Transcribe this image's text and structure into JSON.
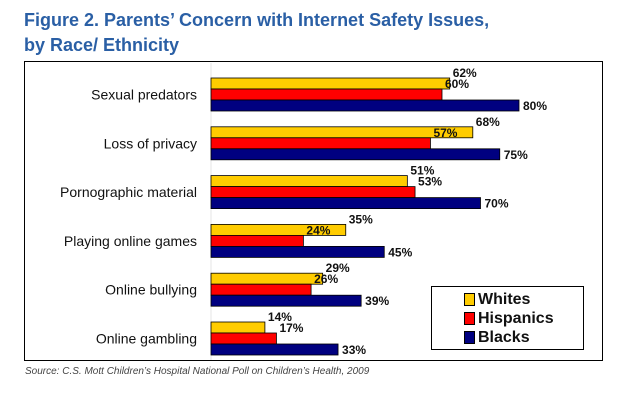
{
  "title_line1": "Figure 2. Parents’ Concern with Internet Safety Issues,",
  "title_line2": "by Race/ Ethnicity",
  "source": "Source: C.S. Mott Children’s Hospital National Poll on Children’s Health, 2009",
  "chart_data": {
    "type": "bar",
    "orientation": "horizontal",
    "title": "Figure 2. Parents’ Concern with Internet Safety Issues, by Race/ Ethnicity",
    "categories": [
      "Sexual predators",
      "Loss of privacy",
      "Pornographic material",
      "Playing online games",
      "Online bullying",
      "Online gambling"
    ],
    "series": [
      {
        "name": "Whites",
        "color": "#FFCC00",
        "values": [
          62,
          68,
          51,
          35,
          29,
          14
        ]
      },
      {
        "name": "Hispanics",
        "color": "#FF0000",
        "values": [
          60,
          57,
          53,
          24,
          26,
          17
        ]
      },
      {
        "name": "Blacks",
        "color": "#000080",
        "values": [
          80,
          75,
          70,
          45,
          39,
          33
        ]
      }
    ],
    "value_suffix": "%",
    "xlim": [
      0,
      100
    ],
    "grid": false,
    "legend_position": "bottom-right"
  }
}
